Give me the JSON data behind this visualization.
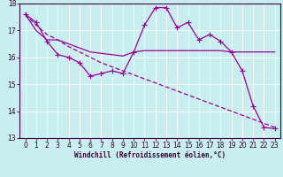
{
  "title": "",
  "xlabel": "Windchill (Refroidissement éolien,°C)",
  "background_color": "#c8eef0",
  "grid_color": "#ffffff",
  "line_color": "#990099",
  "x": [
    0,
    1,
    2,
    3,
    4,
    5,
    6,
    7,
    8,
    9,
    10,
    11,
    12,
    13,
    14,
    15,
    16,
    17,
    18,
    19,
    20,
    21,
    22,
    23
  ],
  "line1": [
    17.6,
    17.3,
    16.6,
    16.1,
    16.0,
    15.8,
    15.3,
    15.4,
    15.5,
    15.4,
    16.2,
    17.2,
    17.85,
    17.85,
    17.1,
    17.3,
    16.65,
    16.85,
    16.6,
    16.2,
    15.5,
    14.2,
    13.4,
    13.35
  ],
  "line2": [
    17.6,
    17.0,
    16.65,
    16.65,
    16.5,
    16.35,
    16.2,
    16.15,
    16.1,
    16.05,
    16.2,
    16.25,
    16.25,
    16.25,
    16.25,
    16.25,
    16.25,
    16.25,
    16.25,
    16.2,
    16.2,
    16.2,
    16.2,
    16.2
  ],
  "line3": [
    17.6,
    17.2,
    16.85,
    16.65,
    16.4,
    16.2,
    16.0,
    15.8,
    15.65,
    15.5,
    15.35,
    15.2,
    15.05,
    14.9,
    14.75,
    14.6,
    14.45,
    14.3,
    14.15,
    14.0,
    13.85,
    13.7,
    13.55,
    13.4
  ],
  "ylim": [
    13,
    18
  ],
  "xlim": [
    -0.5,
    23.5
  ],
  "yticks": [
    13,
    14,
    15,
    16,
    17,
    18
  ],
  "xticks": [
    0,
    1,
    2,
    3,
    4,
    5,
    6,
    7,
    8,
    9,
    10,
    11,
    12,
    13,
    14,
    15,
    16,
    17,
    18,
    19,
    20,
    21,
    22,
    23
  ],
  "tick_fontsize": 5.5,
  "xlabel_fontsize": 5.5,
  "marker": "+",
  "markersize": 4.0,
  "linewidth": 0.9
}
